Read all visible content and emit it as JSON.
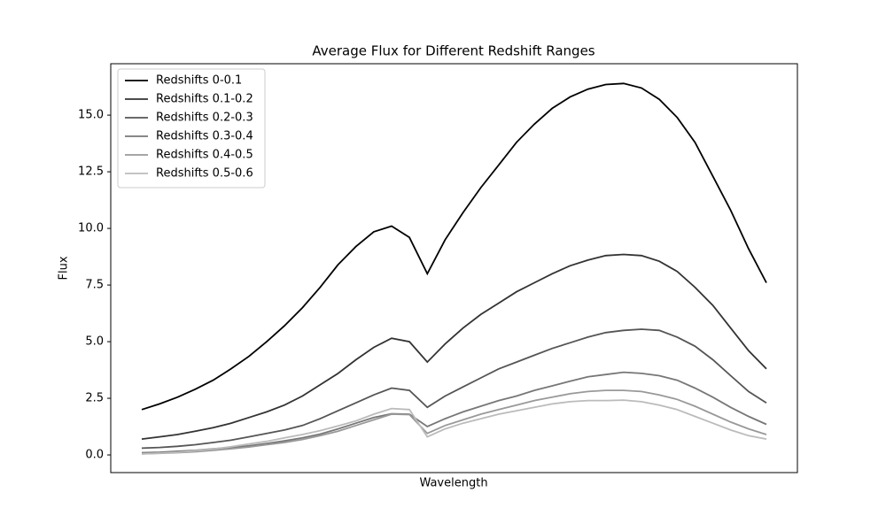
{
  "chart_data": {
    "type": "line",
    "title": "Average Flux for Different Redshift Ranges",
    "x_label": "Wavelength",
    "y_label": "Flux",
    "categories": [
      null,
      null,
      null,
      null,
      null,
      null,
      null,
      null,
      null,
      null,
      null,
      null,
      null,
      null,
      null,
      null,
      null,
      null,
      null,
      null,
      null,
      null,
      null,
      null,
      null,
      null,
      null,
      null,
      null,
      null,
      null,
      null,
      null,
      null,
      null,
      null
    ],
    "series": [
      {
        "name": "Redshifts 0-0.1",
        "color": "#000000",
        "values": [
          2.0,
          2.25,
          2.55,
          2.9,
          3.3,
          3.8,
          4.35,
          5.0,
          5.7,
          6.5,
          7.4,
          8.4,
          9.2,
          9.85,
          10.1,
          9.6,
          8.0,
          9.5,
          10.7,
          11.8,
          12.8,
          13.8,
          14.6,
          15.3,
          15.8,
          16.15,
          16.35,
          16.4,
          16.2,
          15.7,
          14.9,
          13.8,
          12.3,
          10.8,
          9.1,
          7.6
        ]
      },
      {
        "name": "Redshifts 0.1-0.2",
        "color": "#333333",
        "values": [
          0.7,
          0.8,
          0.9,
          1.05,
          1.2,
          1.4,
          1.65,
          1.9,
          2.2,
          2.6,
          3.1,
          3.6,
          4.2,
          4.75,
          5.15,
          5.0,
          4.1,
          4.9,
          5.6,
          6.2,
          6.7,
          7.2,
          7.6,
          8.0,
          8.35,
          8.6,
          8.8,
          8.85,
          8.8,
          8.55,
          8.1,
          7.4,
          6.6,
          5.6,
          4.6,
          3.8
        ]
      },
      {
        "name": "Redshifts 0.2-0.3",
        "color": "#555555",
        "values": [
          0.3,
          0.33,
          0.38,
          0.45,
          0.55,
          0.65,
          0.8,
          0.95,
          1.1,
          1.3,
          1.6,
          1.95,
          2.3,
          2.65,
          2.95,
          2.85,
          2.1,
          2.6,
          3.0,
          3.4,
          3.8,
          4.1,
          4.4,
          4.7,
          4.95,
          5.2,
          5.4,
          5.5,
          5.55,
          5.5,
          5.2,
          4.8,
          4.2,
          3.5,
          2.8,
          2.3
        ]
      },
      {
        "name": "Redshifts 0.3-0.4",
        "color": "#777777",
        "values": [
          0.1,
          0.12,
          0.16,
          0.2,
          0.27,
          0.33,
          0.4,
          0.5,
          0.62,
          0.75,
          0.92,
          1.15,
          1.4,
          1.65,
          1.82,
          1.8,
          1.25,
          1.6,
          1.9,
          2.15,
          2.4,
          2.6,
          2.85,
          3.05,
          3.25,
          3.45,
          3.55,
          3.65,
          3.6,
          3.5,
          3.3,
          2.95,
          2.55,
          2.1,
          1.7,
          1.35
        ]
      },
      {
        "name": "Redshifts 0.4-0.5",
        "color": "#999999",
        "values": [
          0.05,
          0.07,
          0.1,
          0.14,
          0.2,
          0.27,
          0.35,
          0.45,
          0.55,
          0.68,
          0.85,
          1.05,
          1.3,
          1.55,
          1.8,
          1.78,
          0.95,
          1.3,
          1.55,
          1.8,
          2.0,
          2.2,
          2.4,
          2.55,
          2.7,
          2.8,
          2.85,
          2.85,
          2.8,
          2.65,
          2.45,
          2.15,
          1.8,
          1.45,
          1.15,
          0.9
        ]
      },
      {
        "name": "Redshifts 0.5-0.6",
        "color": "#bbbbbb",
        "values": [
          0.05,
          0.08,
          0.12,
          0.18,
          0.26,
          0.36,
          0.48,
          0.6,
          0.75,
          0.9,
          1.07,
          1.28,
          1.5,
          1.8,
          2.05,
          2.0,
          0.8,
          1.15,
          1.4,
          1.6,
          1.8,
          1.95,
          2.1,
          2.25,
          2.35,
          2.4,
          2.4,
          2.42,
          2.35,
          2.2,
          2.0,
          1.7,
          1.4,
          1.1,
          0.85,
          0.7
        ]
      }
    ],
    "ylim": [
      -0.78,
      17.27
    ],
    "yticks": [
      {
        "value": 0,
        "label": "0.0"
      },
      {
        "value": 2.5,
        "label": "2.5"
      },
      {
        "value": 5,
        "label": "5.0"
      },
      {
        "value": 7.5,
        "label": "7.5"
      },
      {
        "value": 10,
        "label": "10.0"
      },
      {
        "value": 12.5,
        "label": "12.5"
      },
      {
        "value": 15,
        "label": "15.0"
      }
    ],
    "grid": false,
    "legend": "upper left"
  }
}
